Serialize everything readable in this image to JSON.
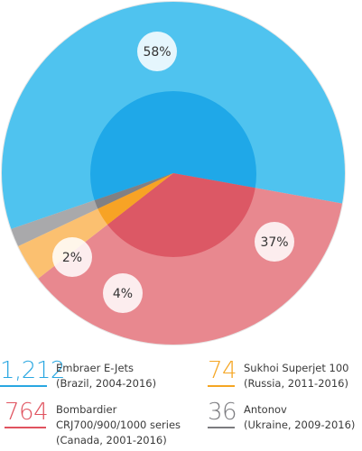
{
  "chart_data": {
    "type": "pie",
    "start_angle_deg": 199,
    "direction": "clockwise",
    "slices": [
      {
        "value": 1212,
        "percent_label": "58%",
        "name": "Embraer E-Jets",
        "detail": "(Brazil, 2004-2016)",
        "color": "#4fc3ef",
        "inner_color": "#1fa8e8"
      },
      {
        "value": 764,
        "percent_label": "37%",
        "name": "Bombardier CRJ700/900/1000 series",
        "detail": "(Canada, 2001-2016)",
        "color": "#e8888f",
        "inner_color": "#dc5865"
      },
      {
        "value": 74,
        "percent_label": "4%",
        "name": "Sukhoi Superjet 100",
        "detail": "(Russia, 2011-2016)",
        "color": "#fbc070",
        "inner_color": "#f7a325"
      },
      {
        "value": 36,
        "percent_label": "2%",
        "name": "Antonov",
        "detail": "(Ukraine, 2009-2016)",
        "color": "#a9a9ab",
        "inner_color": "#808084"
      }
    ]
  },
  "legend": [
    {
      "number": "1,212",
      "line1": "Embraer E-Jets",
      "line2": "(Brazil, 2004-2016)",
      "line3": "",
      "color": "#29a7e1"
    },
    {
      "number": "74",
      "line1": "Sukhoi Superjet 100",
      "line2": "(Russia, 2011-2016)",
      "line3": "",
      "color": "#f5a623"
    },
    {
      "number": "764",
      "line1": "Bombardier",
      "line2": "CRJ700/900/1000 series",
      "line3": "(Canada, 2001-2016)",
      "color": "#e0535f"
    },
    {
      "number": "36",
      "line1": "Antonov",
      "line2": "(Ukraine, 2009-2016)",
      "line3": "",
      "color": "#7b7b7f"
    }
  ]
}
